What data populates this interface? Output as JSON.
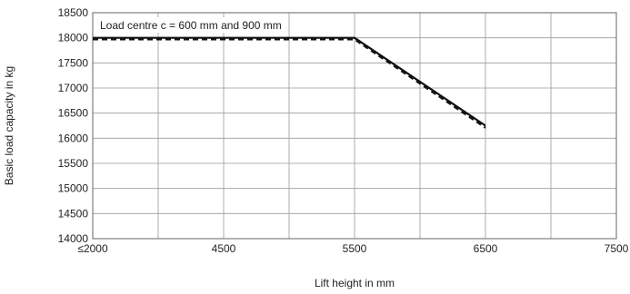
{
  "chart_data": {
    "type": "line",
    "xlabel": "Lift height in mm",
    "ylabel": "Basic load capacity in kg",
    "annotation": "Load centre c = 600 mm and 900 mm",
    "x_ticks": [
      "≤2000",
      "4500",
      "5500",
      "6500",
      "7500"
    ],
    "x_tick_values": [
      4000,
      4500,
      5000,
      5500,
      6000,
      6500,
      7000,
      7500
    ],
    "x_labelled_ticks": [
      {
        "value": 4000,
        "label": "≤2000"
      },
      {
        "value": 5000,
        "label": "4500"
      },
      {
        "value": 6000,
        "label": "5500"
      },
      {
        "value": 7000,
        "label": "6500"
      },
      {
        "value": 8000,
        "label": "7500"
      }
    ],
    "xlim": [
      4000,
      8000
    ],
    "ylim": [
      14000,
      18500
    ],
    "y_ticks": [
      14000,
      14500,
      15000,
      15500,
      16000,
      16500,
      17000,
      17500,
      18000,
      18500
    ],
    "grid": true,
    "series": [
      {
        "style": "solid",
        "x": [
          4000,
          6000,
          7000
        ],
        "y": [
          18000,
          18000,
          16250
        ]
      },
      {
        "style": "dashed",
        "x": [
          4000,
          6000,
          7000
        ],
        "y": [
          17970,
          17970,
          16210
        ]
      }
    ]
  }
}
